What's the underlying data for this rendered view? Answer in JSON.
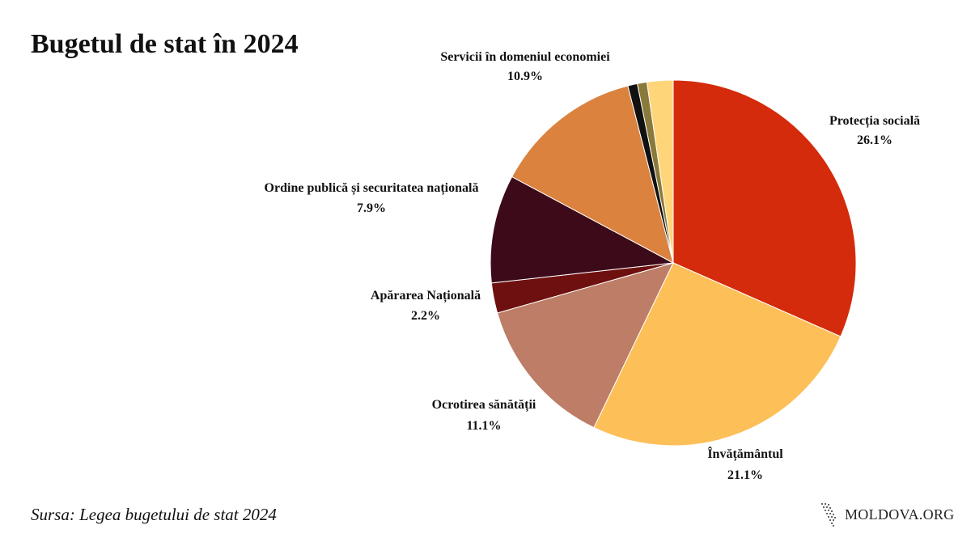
{
  "chart_data": {
    "type": "pie",
    "title": "Bugetul de stat în 2024",
    "slices": [
      {
        "label": "Protecția socială",
        "value_label": "26.1%",
        "value": 26.1,
        "color": "#d42b0c"
      },
      {
        "label": "Învățământul",
        "value_label": "21.1%",
        "value": 21.1,
        "color": "#fdbf57"
      },
      {
        "label": "Ocrotirea sănătății",
        "value_label": "11.1%",
        "value": 11.1,
        "color": "#bd7d66"
      },
      {
        "label": "Apărarea Națională",
        "value_label": "2.2%",
        "value": 2.2,
        "color": "#6e1010"
      },
      {
        "label": "Ordine publică și securitatea națională",
        "value_label": "7.9%",
        "value": 7.9,
        "color": "#3d0a19"
      },
      {
        "label": "Servicii în domeniul economiei",
        "value_label": "10.9%",
        "value": 10.9,
        "color": "#da823e"
      },
      {
        "label": "",
        "value_label": "",
        "value": 0.7,
        "color": "#111111"
      },
      {
        "label": "",
        "value_label": "",
        "value": 0.7,
        "color": "#8a7a3a"
      },
      {
        "label": "",
        "value_label": "",
        "value": 1.9,
        "color": "#ffd57a"
      }
    ],
    "start_angle_deg": 0,
    "direction": "clockwise",
    "legend": "none"
  },
  "source_text": "Sursa: Legea bugetului de stat 2024",
  "brand": {
    "name": "MOLDOVA.ORG",
    "logo_icon": "moldova-map-icon"
  }
}
